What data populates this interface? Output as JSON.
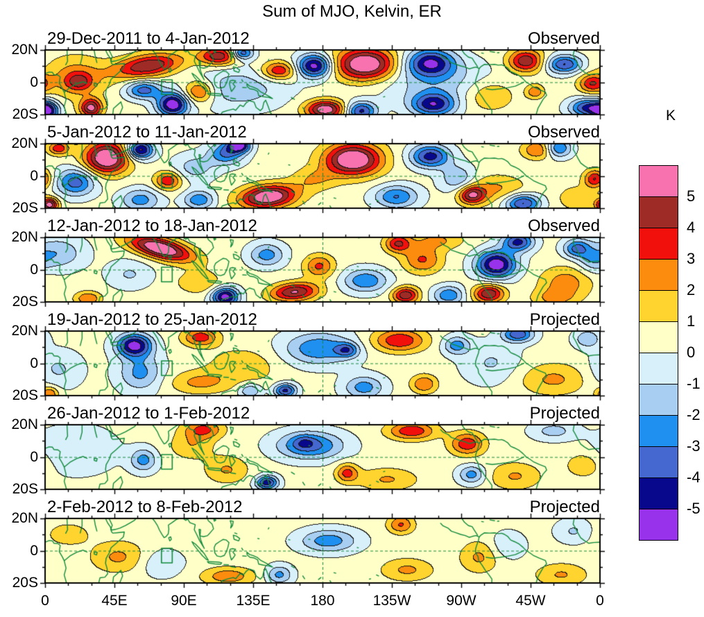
{
  "title": "Sum of MJO, Kelvin, ER",
  "colorbar": {
    "unit": "K",
    "tick_labels": [
      "5",
      "4",
      "3",
      "2",
      "1",
      "0",
      "-1",
      "-2",
      "-3",
      "-4",
      "-5"
    ],
    "colors": [
      "#F972B0",
      "#9E2B26",
      "#F2100C",
      "#FB8C0E",
      "#FFD42E",
      "#FFFFC8",
      "#D8F0FA",
      "#A8CEF2",
      "#1F8FF0",
      "#4468D0",
      "#08088C",
      "#9933EB"
    ]
  },
  "x_axis": {
    "tick_labels": [
      "0",
      "45E",
      "90E",
      "135E",
      "180",
      "135W",
      "90W",
      "45W",
      "0"
    ]
  },
  "y_axis": {
    "tick_labels": [
      "20N",
      "0",
      "20S"
    ]
  },
  "chart_data": {
    "type": "heatmap",
    "title": "Sum of MJO, Kelvin, ER",
    "unit": "K",
    "lon_range": [
      0,
      360
    ],
    "lat_range": [
      -20,
      20
    ],
    "levels": [
      5,
      4,
      3,
      2,
      1,
      0,
      -1,
      -2,
      -3,
      -4,
      -5
    ],
    "palette": [
      "#F972B0",
      "#9E2B26",
      "#F2100C",
      "#FB8C0E",
      "#FFD42E",
      "#FFFFC8",
      "#D8F0FA",
      "#A8CEF2",
      "#1F8FF0",
      "#4468D0",
      "#08088C",
      "#9933EB"
    ],
    "map_overlay": {
      "coast_color": "#128A3C",
      "equator_dashed": true,
      "dateline_dashed": true,
      "box_lon": [
        75.5,
        82.5
      ],
      "box_lat": [
        -7.5,
        1.5
      ]
    },
    "blob_format": "[lon_deg, lat_deg, sigma_lon_deg, sigma_lat_deg, amplitude_K, rotation_deg_optional]",
    "panels": [
      {
        "label": "29-Dec-2011 to 4-Jan-2012",
        "status": "Observed",
        "base": 0.35,
        "blobs": [
          [
            20,
            3,
            14,
            9,
            2.2
          ],
          [
            22,
            0,
            6,
            4,
            2.5
          ],
          [
            30,
            -16,
            5,
            4,
            5.0
          ],
          [
            2,
            -18,
            5,
            4,
            -4.8
          ],
          [
            67,
            10,
            16,
            5,
            4.6,
            8
          ],
          [
            64,
            -5,
            8,
            4,
            -3.8
          ],
          [
            83,
            -14,
            7,
            5,
            -6.2
          ],
          [
            100,
            -6,
            7,
            5,
            3.6
          ],
          [
            113,
            16,
            9,
            4,
            4.4
          ],
          [
            125,
            -4,
            22,
            9,
            -2.0
          ],
          [
            128,
            18,
            5,
            3,
            -4.4
          ],
          [
            152,
            7,
            8,
            4,
            3.8
          ],
          [
            175,
            10,
            8,
            5,
            -6.0
          ],
          [
            182,
            -17,
            9,
            4,
            5.6
          ],
          [
            205,
            -18,
            7,
            4,
            -4.6
          ],
          [
            208,
            11,
            14,
            7,
            6.3
          ],
          [
            250,
            12,
            11,
            6,
            -5.0
          ],
          [
            252,
            -14,
            10,
            5,
            -4.8
          ],
          [
            255,
            0,
            26,
            10,
            -1.8
          ],
          [
            288,
            -8,
            12,
            7,
            1.9
          ],
          [
            312,
            13,
            8,
            5,
            4.5
          ],
          [
            337,
            11,
            8,
            4,
            -4.4
          ],
          [
            318,
            -6,
            4,
            3,
            2.6
          ],
          [
            355,
            -1,
            6,
            4,
            3.4
          ],
          [
            352,
            -16,
            8,
            4,
            -4.6
          ]
        ]
      },
      {
        "label": "5-Jan-2012 to 11-Jan-2012",
        "status": "Observed",
        "base": 0.35,
        "blobs": [
          [
            9,
            17,
            5,
            3,
            3.4
          ],
          [
            3,
            -18,
            4,
            3,
            5.2
          ],
          [
            20,
            -4,
            9,
            6,
            -3.9
          ],
          [
            40,
            11,
            10,
            7,
            6.2
          ],
          [
            62,
            16,
            6,
            4,
            -5.8
          ],
          [
            80,
            -3,
            6,
            4,
            3.6
          ],
          [
            62,
            -15,
            9,
            5,
            -2.8
          ],
          [
            97,
            5,
            10,
            6,
            -1.8
          ],
          [
            118,
            14,
            8,
            5,
            -3.6
          ],
          [
            126,
            19,
            5,
            3,
            -6.0
          ],
          [
            100,
            -15,
            7,
            4,
            -3.2
          ],
          [
            145,
            -13,
            13,
            5,
            6.0,
            5
          ],
          [
            175,
            -2,
            10,
            5,
            1.6
          ],
          [
            200,
            10,
            13,
            7,
            6.3
          ],
          [
            250,
            12,
            9,
            5,
            -4.8
          ],
          [
            228,
            -13,
            10,
            5,
            -3.4
          ],
          [
            268,
            -2,
            8,
            6,
            -2.4
          ],
          [
            292,
            -8,
            14,
            6,
            1.8
          ],
          [
            277,
            -12,
            6,
            4,
            4.6
          ],
          [
            310,
            -17,
            8,
            4,
            -4.6
          ],
          [
            320,
            16,
            7,
            4,
            2.9
          ],
          [
            333,
            17,
            6,
            4,
            -3.6
          ],
          [
            357,
            -2,
            5,
            4,
            3.8
          ],
          [
            345,
            -14,
            8,
            5,
            1.6
          ]
        ]
      },
      {
        "label": "12-Jan-2012 to 18-Jan-2012",
        "status": "Observed",
        "base": 0.3,
        "blobs": [
          [
            8,
            10,
            12,
            7,
            -2.2
          ],
          [
            75,
            13,
            15,
            4.5,
            6.1,
            -14
          ],
          [
            28,
            -18,
            6,
            3,
            2.7
          ],
          [
            55,
            -3,
            10,
            6,
            -1.4
          ],
          [
            117,
            -17,
            6,
            4,
            -6.0
          ],
          [
            100,
            -8,
            10,
            5,
            1.7
          ],
          [
            144,
            9,
            8,
            5,
            -2.8
          ],
          [
            162,
            -14,
            11,
            4,
            4.8,
            4
          ],
          [
            178,
            2,
            7,
            5,
            2.9
          ],
          [
            208,
            -7,
            10,
            5,
            -3.2
          ],
          [
            229,
            16,
            6,
            4,
            3.7
          ],
          [
            245,
            6,
            9,
            6,
            2.8
          ],
          [
            234,
            -16,
            6,
            3.5,
            4.6
          ],
          [
            262,
            -16,
            7,
            4,
            -3.2
          ],
          [
            255,
            18,
            12,
            4,
            1.8
          ],
          [
            293,
            3,
            9,
            6,
            -6.2
          ],
          [
            307,
            17,
            7,
            4,
            -4.6
          ],
          [
            288,
            -15,
            7,
            4,
            4.7
          ],
          [
            338,
            -8,
            12,
            7,
            2.2
          ],
          [
            345,
            13,
            6,
            4,
            -3.5
          ],
          [
            330,
            -18,
            10,
            4,
            1.7
          ],
          [
            355,
            5,
            6,
            5,
            -1.5
          ]
        ]
      },
      {
        "label": "19-Jan-2012 to 25-Jan-2012",
        "status": "Projected",
        "base": 0.3,
        "blobs": [
          [
            58,
            11,
            8,
            5,
            -5.8
          ],
          [
            62,
            -6,
            10,
            8,
            -2.6
          ],
          [
            8,
            -4,
            11,
            8,
            -1.5
          ],
          [
            101,
            16,
            8,
            4,
            3.3
          ],
          [
            100,
            -12,
            14,
            5,
            1.9
          ],
          [
            128,
            -2,
            16,
            8,
            1.5
          ],
          [
            156,
            -17,
            5,
            3,
            -4.6
          ],
          [
            133,
            -17,
            5,
            3,
            -2.6
          ],
          [
            178,
            9,
            16,
            7,
            -3.2
          ],
          [
            196,
            8,
            5,
            3,
            -3.0
          ],
          [
            207,
            -15,
            9,
            5,
            -2.8
          ],
          [
            230,
            14,
            12,
            5,
            3.6
          ],
          [
            246,
            -13,
            6,
            4,
            2.7
          ],
          [
            267,
            11,
            6,
            4,
            -2.8
          ],
          [
            290,
            0,
            13,
            9,
            -1.4
          ],
          [
            307,
            18,
            7,
            3.5,
            -4.2
          ],
          [
            330,
            -10,
            16,
            7,
            1.9
          ],
          [
            352,
            15,
            6,
            4,
            -2.2
          ],
          [
            3,
            -19,
            4,
            3,
            2.8
          ]
        ]
      },
      {
        "label": "26-Jan-2012 to 1-Feb-2012",
        "status": "Projected",
        "base": 0.3,
        "blobs": [
          [
            20,
            4,
            18,
            10,
            -1.3
          ],
          [
            64,
            -2,
            6,
            5,
            -2.7
          ],
          [
            103,
            17,
            9,
            4,
            2.9
          ],
          [
            95,
            7,
            10,
            6,
            1.6
          ],
          [
            118,
            -8,
            10,
            6,
            1.8
          ],
          [
            172,
            7,
            15,
            6,
            -3.7
          ],
          [
            168,
            9,
            5,
            3,
            -1.4
          ],
          [
            144,
            -16,
            5,
            3,
            -4.9
          ],
          [
            196,
            -10,
            5,
            4,
            3.0
          ],
          [
            222,
            -14,
            14,
            5,
            1.8
          ],
          [
            238,
            16,
            11,
            4,
            3.5
          ],
          [
            274,
            8,
            8,
            5,
            3.4
          ],
          [
            277,
            -11,
            6,
            4,
            -2.8
          ],
          [
            305,
            -12,
            12,
            6,
            1.8
          ],
          [
            350,
            -5,
            9,
            6,
            1.5
          ],
          [
            330,
            16,
            10,
            4,
            -1.7
          ]
        ]
      },
      {
        "label": "2-Feb-2012 to 8-Feb-2012",
        "status": "Projected",
        "base": 0.3,
        "blobs": [
          [
            48,
            -4,
            13,
            7,
            1.9
          ],
          [
            15,
            10,
            10,
            5,
            1.4
          ],
          [
            75,
            -8,
            10,
            6,
            -1.3
          ],
          [
            119,
            -16,
            12,
            4,
            2.4
          ],
          [
            152,
            -15,
            6,
            4,
            -2.6
          ],
          [
            184,
            6,
            13,
            5,
            -2.9
          ],
          [
            235,
            -12,
            12,
            5,
            1.9
          ],
          [
            231,
            16,
            6,
            4,
            2.8
          ],
          [
            282,
            -4,
            9,
            7,
            1.9
          ],
          [
            300,
            3,
            8,
            6,
            -1.3
          ],
          [
            335,
            -15,
            12,
            5,
            1.8
          ],
          [
            343,
            12,
            8,
            5,
            -1.4
          ]
        ]
      }
    ]
  }
}
